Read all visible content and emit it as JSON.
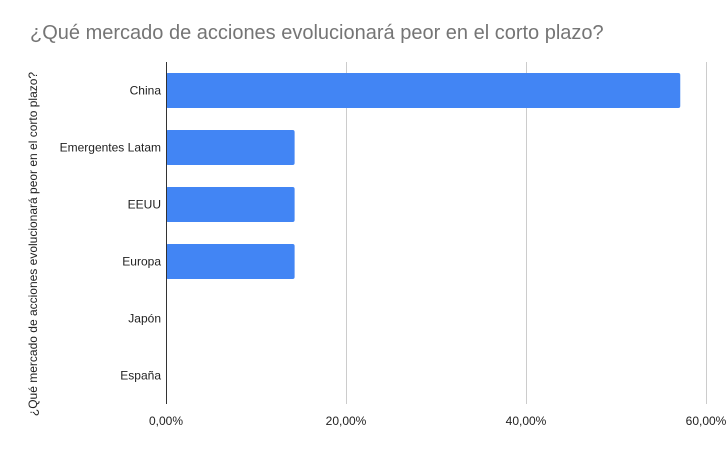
{
  "chart_data": {
    "type": "bar",
    "orientation": "horizontal",
    "title": "¿Qué mercado de acciones evolucionará peor en el corto plazo?",
    "ylabel": "¿Qué mercado de acciones evolucionará peor en el corto plazo?",
    "xlabel": "",
    "categories": [
      "China",
      "Emergentes Latam",
      "EEUU",
      "Europa",
      "Japón",
      "España"
    ],
    "values": [
      57.14,
      14.29,
      14.29,
      14.29,
      0,
      0
    ],
    "xlim": [
      0,
      60
    ],
    "x_ticks": [
      0,
      20,
      40,
      60
    ],
    "x_tick_labels": [
      "0,00%",
      "20,00%",
      "40,00%",
      "60,00%"
    ],
    "grid": true,
    "bar_color": "#4285f4",
    "grid_color": "#cccccc",
    "title_color": "#757575",
    "text_color": "#222222"
  }
}
